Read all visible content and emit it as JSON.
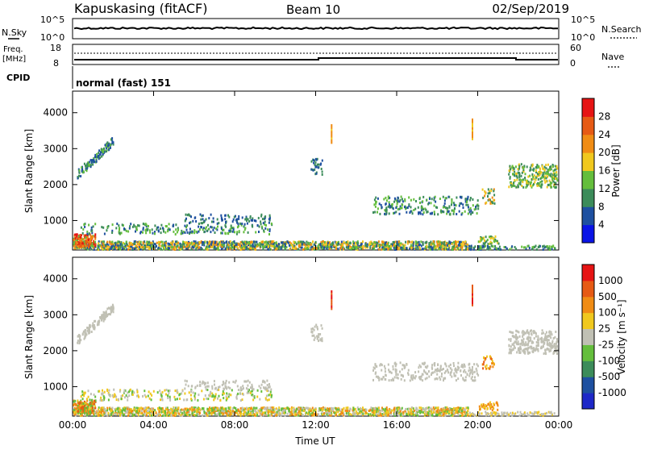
{
  "header": {
    "title": "Kapuskasing (fitACF)",
    "beam": "Beam 10",
    "date": "02/Sep/2019"
  },
  "nsky": {
    "label": "N.Sky",
    "ticks": [
      "10^5",
      "10^0"
    ],
    "right_ticks": [
      "10^5",
      "10^0"
    ],
    "right_label": "N.Search"
  },
  "freq": {
    "label_line1": "Freq.",
    "label_line2": "[MHz]",
    "ticks": [
      "18",
      "8"
    ],
    "right_ticks": [
      "60",
      "0"
    ],
    "right_label": "Nave"
  },
  "cpid": {
    "label": "CPID",
    "text": "normal (fast) 151"
  },
  "colors": {
    "power": [
      "#0a14e6",
      "#1e50a0",
      "#3c8c5a",
      "#64be3c",
      "#f0c81e",
      "#f08c14",
      "#e65a14",
      "#e61414"
    ],
    "velocity": [
      "#1e28c8",
      "#1e50a0",
      "#3c8c5a",
      "#64be3c",
      "#c0c0b4",
      "#f0c81e",
      "#f08c14",
      "#e65a14",
      "#e61414"
    ]
  },
  "chart_data": [
    {
      "type": "heatmap",
      "name": "power",
      "ylabel": "Slant Range [km]",
      "xlabel": "",
      "y_ticks": [
        "1000",
        "2000",
        "3000",
        "4000"
      ],
      "y_tick_values": [
        1000,
        2000,
        3000,
        4000
      ],
      "ylim": [
        180,
        4600
      ],
      "x_ticks": [
        "00:00",
        "04:00",
        "08:00",
        "12:00",
        "16:00",
        "20:00",
        "00:00"
      ],
      "x_tick_values": [
        0,
        4,
        8,
        12,
        16,
        20,
        24
      ],
      "xlim": [
        0,
        24
      ],
      "colorbar_label": "Power [dB]",
      "colorbar_ticks": [
        "4",
        "8",
        "12",
        "16",
        "20",
        "24",
        "28"
      ],
      "colorbar_range": [
        0,
        32
      ],
      "colorbar_side": "right"
    },
    {
      "type": "heatmap",
      "name": "velocity",
      "ylabel": "Slant Range [km]",
      "xlabel": "Time UT",
      "y_ticks": [
        "1000",
        "2000",
        "3000",
        "4000"
      ],
      "y_tick_values": [
        1000,
        2000,
        3000,
        4000
      ],
      "ylim": [
        180,
        4600
      ],
      "x_ticks": [
        "00:00",
        "04:00",
        "08:00",
        "12:00",
        "16:00",
        "20:00",
        "00:00"
      ],
      "x_tick_values": [
        0,
        4,
        8,
        12,
        16,
        20,
        24
      ],
      "xlim": [
        0,
        24
      ],
      "colorbar_label": "Velocity [m s⁻¹]",
      "colorbar_ticks": [
        "1000",
        "500",
        "100",
        "25",
        "-25",
        "-100",
        "-500",
        "-1000"
      ],
      "colorbar_side": "right"
    }
  ]
}
